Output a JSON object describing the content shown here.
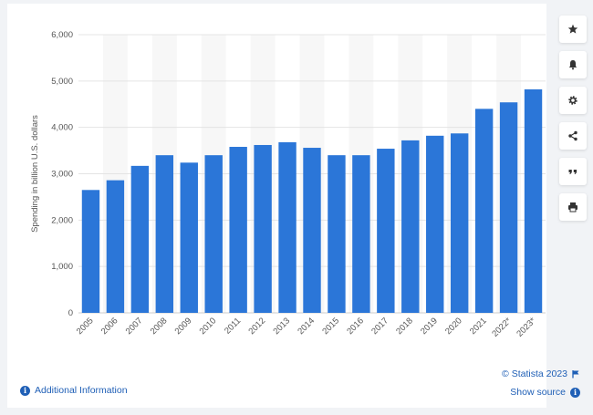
{
  "chart_data": {
    "type": "bar",
    "ylabel": "Spending in billion U.S. dollars",
    "categories": [
      "2005",
      "2006",
      "2007",
      "2008",
      "2009",
      "2010",
      "2011",
      "2012",
      "2013",
      "2014",
      "2015",
      "2016",
      "2017",
      "2018",
      "2019",
      "2020",
      "2021",
      "2022*",
      "2023*"
    ],
    "values": [
      2650,
      2860,
      3170,
      3400,
      3240,
      3400,
      3580,
      3620,
      3680,
      3560,
      3400,
      3400,
      3540,
      3720,
      3820,
      3870,
      4400,
      4540,
      4820
    ],
    "ylim": [
      0,
      6000
    ],
    "yticks": [
      "0",
      "1,000",
      "2,000",
      "3,000",
      "4,000",
      "5,000",
      "6,000"
    ],
    "grid": true,
    "bar_color": "#2b76d8"
  },
  "footer": {
    "additional_info": "Additional Information",
    "copyright": "© Statista 2023",
    "show_source": "Show source"
  },
  "toolbar": {
    "icons": [
      "star-icon",
      "bell-icon",
      "gear-icon",
      "share-icon",
      "quote-icon",
      "print-icon"
    ]
  },
  "colors": {
    "accent": "#1f5fb6",
    "bar": "#2b76d8"
  }
}
